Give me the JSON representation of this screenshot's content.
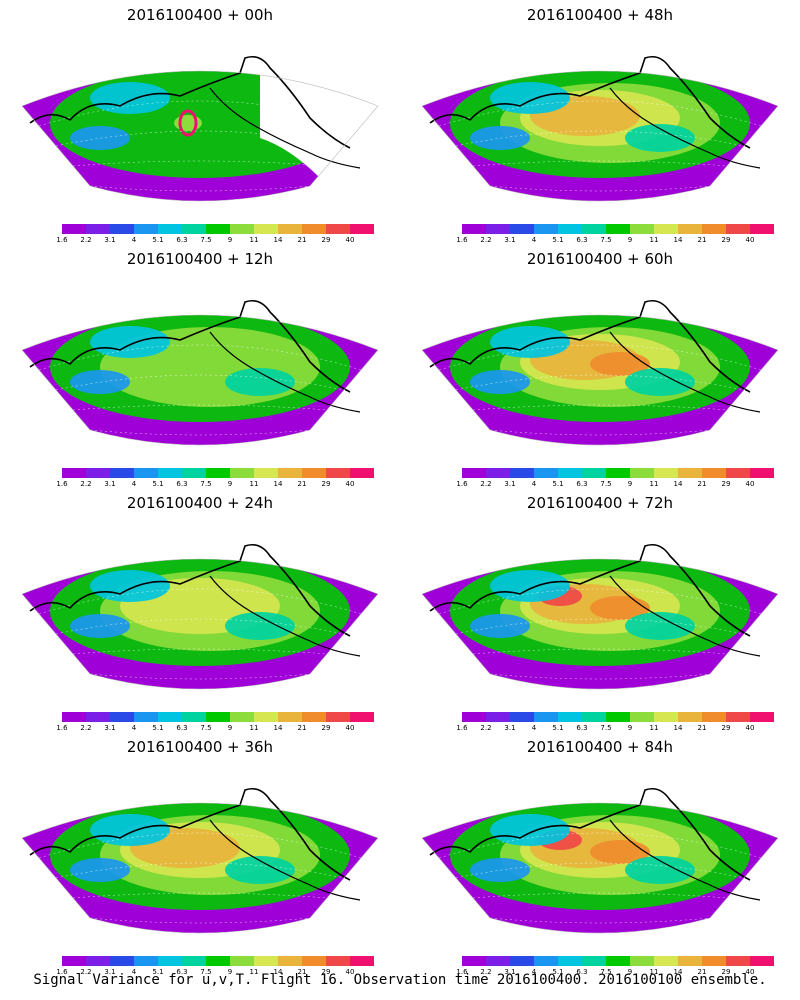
{
  "caption": "Signal Variance for u,v,T. Flight 16. Observation time 2016100400. 2016100100 ensemble.",
  "colorbar": {
    "labels": [
      "1.6",
      "2.2",
      "3.1",
      "4",
      "5.1",
      "6.3",
      "7.5",
      "9",
      "11",
      "14",
      "21",
      "29",
      "40"
    ],
    "colors": [
      "#a000d8",
      "#7a1ee8",
      "#2a4ae8",
      "#1a96f0",
      "#00c4e0",
      "#00d2a0",
      "#00c800",
      "#8cdc3c",
      "#d6e650",
      "#e8b43c",
      "#f08c2c",
      "#f04848",
      "#f0106e"
    ]
  },
  "panels": [
    {
      "id": "p00",
      "title": "2016100400 + 00h",
      "intensity": 0.0
    },
    {
      "id": "p48",
      "title": "2016100400 + 48h",
      "intensity": 0.62
    },
    {
      "id": "p12",
      "title": "2016100400 + 12h",
      "intensity": 0.25
    },
    {
      "id": "p60",
      "title": "2016100400 + 60h",
      "intensity": 0.72
    },
    {
      "id": "p24",
      "title": "2016100400 + 24h",
      "intensity": 0.4
    },
    {
      "id": "p72",
      "title": "2016100400 + 72h",
      "intensity": 0.8
    },
    {
      "id": "p36",
      "title": "2016100400 + 36h",
      "intensity": 0.5
    },
    {
      "id": "p84",
      "title": "2016100400 + 84h",
      "intensity": 0.9
    }
  ]
}
